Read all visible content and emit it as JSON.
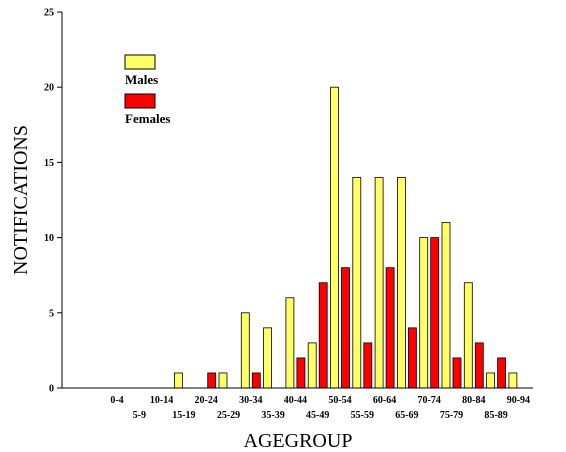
{
  "chart_data": {
    "type": "bar",
    "title": "",
    "xlabel": "AGEGROUP",
    "ylabel": "NOTIFICATIONS",
    "ylim": [
      0,
      25
    ],
    "yticks": [
      0,
      5,
      10,
      15,
      20,
      25
    ],
    "grid": false,
    "legend_position": "top-left",
    "categories": [
      "0-4",
      "5-9",
      "10-14",
      "15-19",
      "20-24",
      "25-29",
      "30-34",
      "35-39",
      "40-44",
      "45-49",
      "50-54",
      "55-59",
      "60-64",
      "65-69",
      "70-74",
      "75-79",
      "80-84",
      "85-89",
      "90-94"
    ],
    "series": [
      {
        "name": "Males",
        "color": "#ffff66",
        "values": [
          0,
          0,
          0,
          1,
          0,
          1,
          5,
          4,
          6,
          3,
          20,
          14,
          14,
          14,
          10,
          11,
          7,
          1,
          1
        ]
      },
      {
        "name": "Females",
        "color": "#ff0000",
        "values": [
          0,
          0,
          0,
          0,
          1,
          0,
          1,
          0,
          2,
          7,
          8,
          3,
          8,
          4,
          10,
          2,
          3,
          2,
          0
        ]
      }
    ]
  }
}
